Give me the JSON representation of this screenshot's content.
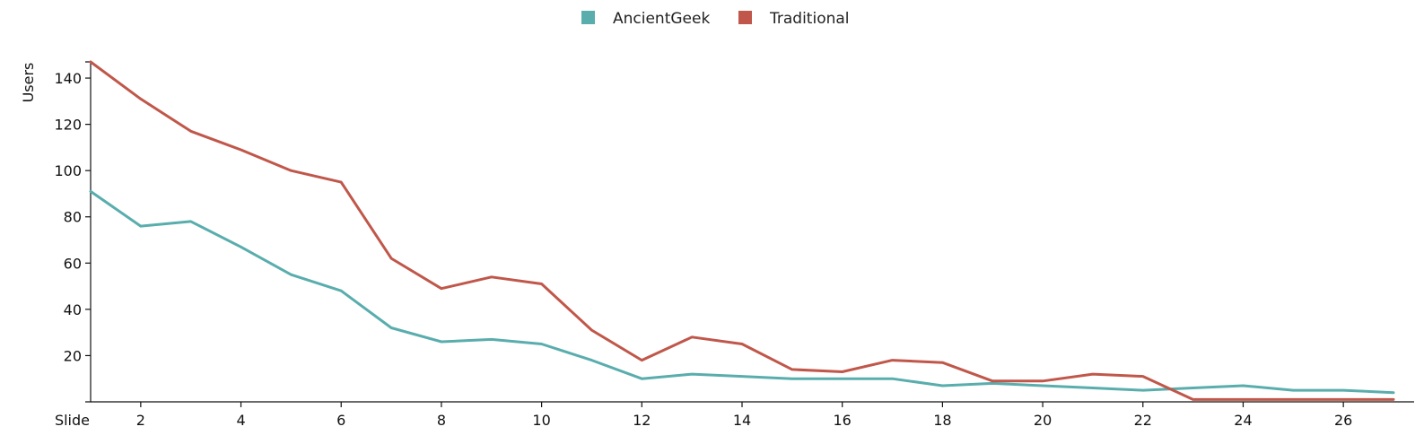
{
  "chart_data": {
    "type": "line",
    "xlabel": "Slide",
    "ylabel": "Users",
    "xlim": [
      1,
      27
    ],
    "ylim": [
      0,
      147
    ],
    "x_ticks": [
      2,
      4,
      6,
      8,
      10,
      12,
      14,
      16,
      18,
      20,
      22,
      24,
      26
    ],
    "y_ticks": [
      20,
      40,
      60,
      80,
      100,
      120,
      140
    ],
    "legend_position": "top-center",
    "grid": false,
    "x": [
      1,
      2,
      3,
      4,
      5,
      6,
      7,
      8,
      9,
      10,
      11,
      12,
      13,
      14,
      15,
      16,
      17,
      18,
      19,
      20,
      21,
      22,
      23,
      24,
      25,
      26,
      27
    ],
    "series": [
      {
        "name": "AncientGeek",
        "color": "#5aadad",
        "values": [
          91,
          76,
          78,
          67,
          55,
          48,
          32,
          26,
          27,
          25,
          18,
          10,
          12,
          11,
          10,
          10,
          10,
          7,
          8,
          7,
          6,
          5,
          6,
          7,
          5,
          5,
          4
        ]
      },
      {
        "name": "Traditional",
        "color": "#c0574a",
        "values": [
          147,
          131,
          117,
          109,
          100,
          95,
          62,
          49,
          54,
          51,
          31,
          18,
          28,
          25,
          14,
          13,
          18,
          17,
          9,
          9,
          12,
          11,
          1,
          1,
          1,
          1,
          1
        ]
      }
    ]
  }
}
